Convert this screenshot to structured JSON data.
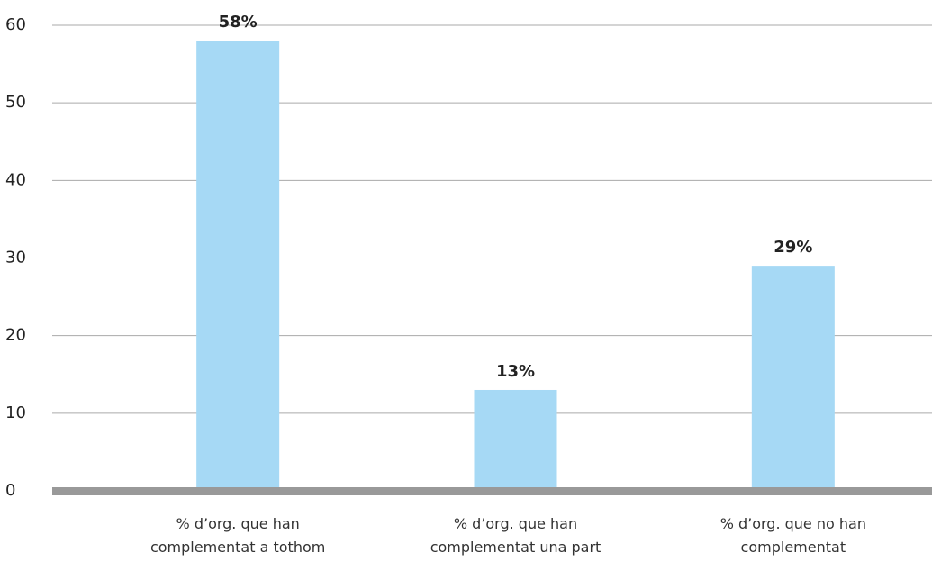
{
  "chart_data": {
    "type": "bar",
    "categories": [
      [
        "% d’org. que han",
        "complementat a tothom"
      ],
      [
        "% d’org. que han",
        "complementat una part"
      ],
      [
        "% d’org. que no han",
        "complementat"
      ]
    ],
    "values": [
      58,
      13,
      29
    ],
    "value_labels": [
      "58%",
      "13%",
      "29%"
    ],
    "color": "#a6d9f5",
    "ylim": [
      0,
      60
    ],
    "yticks": [
      0,
      10,
      20,
      30,
      40,
      50,
      60
    ],
    "grid": true
  }
}
